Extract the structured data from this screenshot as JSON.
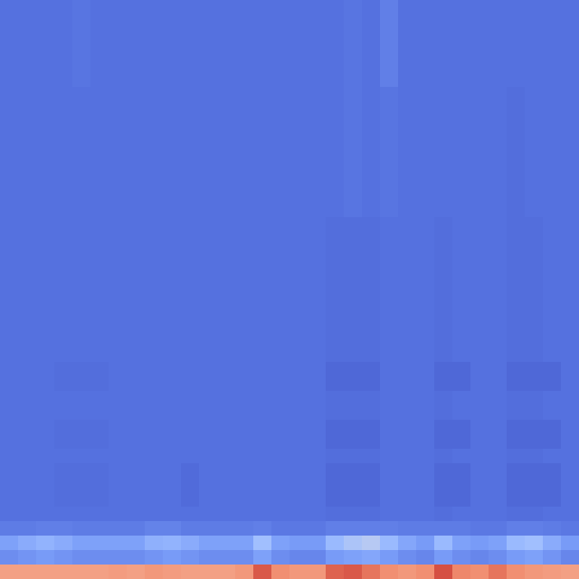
{
  "chart_data": {
    "type": "heatmap",
    "color": "coolwarm",
    "zlim": [
      0,
      1
    ],
    "tick_labels": false,
    "cells": [
      [
        0.12,
        0.12,
        0.12,
        0.12,
        0.13,
        0.12,
        0.12,
        0.12,
        0.12,
        0.12,
        0.12,
        0.12,
        0.12,
        0.12,
        0.12,
        0.12,
        0.12,
        0.12,
        0.12,
        0.13,
        0.12,
        0.16,
        0.12,
        0.12,
        0.12,
        0.12,
        0.12,
        0.12,
        0.12,
        0.12,
        0.12,
        0.12
      ],
      [
        0.12,
        0.12,
        0.12,
        0.12,
        0.13,
        0.12,
        0.12,
        0.12,
        0.12,
        0.12,
        0.12,
        0.12,
        0.12,
        0.12,
        0.12,
        0.12,
        0.12,
        0.12,
        0.12,
        0.13,
        0.12,
        0.16,
        0.12,
        0.12,
        0.12,
        0.12,
        0.12,
        0.12,
        0.12,
        0.12,
        0.12,
        0.12
      ],
      [
        0.12,
        0.12,
        0.12,
        0.12,
        0.13,
        0.12,
        0.12,
        0.12,
        0.12,
        0.12,
        0.12,
        0.12,
        0.12,
        0.12,
        0.12,
        0.12,
        0.12,
        0.12,
        0.12,
        0.13,
        0.12,
        0.16,
        0.12,
        0.12,
        0.12,
        0.12,
        0.12,
        0.12,
        0.12,
        0.12,
        0.12,
        0.12
      ],
      [
        0.12,
        0.12,
        0.12,
        0.12,
        0.13,
        0.12,
        0.12,
        0.12,
        0.12,
        0.12,
        0.12,
        0.12,
        0.12,
        0.12,
        0.12,
        0.12,
        0.12,
        0.12,
        0.12,
        0.13,
        0.12,
        0.16,
        0.12,
        0.12,
        0.12,
        0.12,
        0.12,
        0.12,
        0.12,
        0.12,
        0.12,
        0.12
      ],
      [
        0.12,
        0.12,
        0.12,
        0.12,
        0.13,
        0.12,
        0.12,
        0.12,
        0.12,
        0.12,
        0.12,
        0.12,
        0.12,
        0.12,
        0.12,
        0.12,
        0.12,
        0.12,
        0.12,
        0.13,
        0.12,
        0.16,
        0.12,
        0.12,
        0.12,
        0.12,
        0.12,
        0.12,
        0.12,
        0.12,
        0.12,
        0.12
      ],
      [
        0.12,
        0.12,
        0.12,
        0.12,
        0.13,
        0.12,
        0.12,
        0.12,
        0.12,
        0.12,
        0.12,
        0.12,
        0.12,
        0.12,
        0.12,
        0.12,
        0.12,
        0.12,
        0.12,
        0.13,
        0.12,
        0.16,
        0.12,
        0.12,
        0.12,
        0.12,
        0.12,
        0.12,
        0.12,
        0.12,
        0.12,
        0.12
      ],
      [
        0.12,
        0.12,
        0.12,
        0.12,
        0.12,
        0.12,
        0.12,
        0.12,
        0.12,
        0.12,
        0.12,
        0.12,
        0.12,
        0.12,
        0.12,
        0.12,
        0.12,
        0.12,
        0.12,
        0.13,
        0.12,
        0.13,
        0.12,
        0.12,
        0.12,
        0.12,
        0.12,
        0.12,
        0.11,
        0.12,
        0.12,
        0.12
      ],
      [
        0.12,
        0.12,
        0.12,
        0.12,
        0.12,
        0.12,
        0.12,
        0.12,
        0.12,
        0.12,
        0.12,
        0.12,
        0.12,
        0.12,
        0.12,
        0.12,
        0.12,
        0.12,
        0.12,
        0.13,
        0.12,
        0.13,
        0.12,
        0.12,
        0.12,
        0.12,
        0.12,
        0.12,
        0.11,
        0.12,
        0.12,
        0.12
      ],
      [
        0.12,
        0.12,
        0.12,
        0.12,
        0.12,
        0.12,
        0.12,
        0.12,
        0.12,
        0.12,
        0.12,
        0.12,
        0.12,
        0.12,
        0.12,
        0.12,
        0.12,
        0.12,
        0.12,
        0.13,
        0.12,
        0.13,
        0.12,
        0.12,
        0.12,
        0.12,
        0.12,
        0.12,
        0.11,
        0.12,
        0.12,
        0.12
      ],
      [
        0.12,
        0.12,
        0.12,
        0.12,
        0.12,
        0.12,
        0.12,
        0.12,
        0.12,
        0.12,
        0.12,
        0.12,
        0.12,
        0.12,
        0.12,
        0.12,
        0.12,
        0.12,
        0.12,
        0.13,
        0.12,
        0.13,
        0.12,
        0.12,
        0.12,
        0.12,
        0.12,
        0.12,
        0.11,
        0.12,
        0.12,
        0.12
      ],
      [
        0.12,
        0.12,
        0.12,
        0.12,
        0.12,
        0.12,
        0.12,
        0.12,
        0.12,
        0.12,
        0.12,
        0.12,
        0.12,
        0.12,
        0.12,
        0.12,
        0.12,
        0.12,
        0.12,
        0.13,
        0.12,
        0.13,
        0.12,
        0.12,
        0.12,
        0.12,
        0.12,
        0.12,
        0.11,
        0.12,
        0.12,
        0.12
      ],
      [
        0.12,
        0.12,
        0.12,
        0.12,
        0.12,
        0.12,
        0.12,
        0.12,
        0.12,
        0.12,
        0.12,
        0.12,
        0.12,
        0.12,
        0.12,
        0.12,
        0.12,
        0.12,
        0.12,
        0.13,
        0.12,
        0.13,
        0.12,
        0.12,
        0.12,
        0.12,
        0.12,
        0.12,
        0.11,
        0.12,
        0.12,
        0.12
      ],
      [
        0.12,
        0.12,
        0.12,
        0.12,
        0.12,
        0.12,
        0.12,
        0.12,
        0.12,
        0.12,
        0.12,
        0.12,
        0.12,
        0.12,
        0.12,
        0.12,
        0.12,
        0.12,
        0.12,
        0.13,
        0.12,
        0.13,
        0.12,
        0.12,
        0.12,
        0.12,
        0.12,
        0.12,
        0.11,
        0.12,
        0.12,
        0.12
      ],
      [
        0.12,
        0.12,
        0.12,
        0.12,
        0.12,
        0.12,
        0.12,
        0.12,
        0.12,
        0.12,
        0.12,
        0.12,
        0.12,
        0.12,
        0.12,
        0.12,
        0.12,
        0.12,
        0.12,
        0.13,
        0.12,
        0.13,
        0.12,
        0.12,
        0.12,
        0.12,
        0.12,
        0.12,
        0.11,
        0.12,
        0.12,
        0.12
      ],
      [
        0.12,
        0.12,
        0.12,
        0.12,
        0.12,
        0.12,
        0.12,
        0.12,
        0.12,
        0.12,
        0.12,
        0.12,
        0.12,
        0.12,
        0.12,
        0.12,
        0.12,
        0.12,
        0.12,
        0.13,
        0.12,
        0.13,
        0.12,
        0.12,
        0.12,
        0.12,
        0.12,
        0.12,
        0.11,
        0.12,
        0.12,
        0.12
      ],
      [
        0.12,
        0.12,
        0.12,
        0.12,
        0.12,
        0.12,
        0.12,
        0.12,
        0.12,
        0.12,
        0.12,
        0.12,
        0.12,
        0.12,
        0.12,
        0.12,
        0.12,
        0.12,
        0.11,
        0.11,
        0.11,
        0.12,
        0.12,
        0.12,
        0.11,
        0.12,
        0.12,
        0.12,
        0.11,
        0.11,
        0.12,
        0.12
      ],
      [
        0.12,
        0.12,
        0.12,
        0.12,
        0.12,
        0.12,
        0.12,
        0.12,
        0.12,
        0.12,
        0.12,
        0.12,
        0.12,
        0.12,
        0.12,
        0.12,
        0.12,
        0.12,
        0.11,
        0.11,
        0.11,
        0.12,
        0.12,
        0.12,
        0.11,
        0.12,
        0.12,
        0.12,
        0.11,
        0.11,
        0.12,
        0.12
      ],
      [
        0.12,
        0.12,
        0.12,
        0.12,
        0.12,
        0.12,
        0.12,
        0.12,
        0.12,
        0.12,
        0.12,
        0.12,
        0.12,
        0.12,
        0.12,
        0.12,
        0.12,
        0.12,
        0.11,
        0.11,
        0.11,
        0.12,
        0.12,
        0.12,
        0.11,
        0.12,
        0.12,
        0.12,
        0.11,
        0.11,
        0.12,
        0.12
      ],
      [
        0.12,
        0.12,
        0.12,
        0.12,
        0.12,
        0.12,
        0.12,
        0.12,
        0.12,
        0.12,
        0.12,
        0.12,
        0.12,
        0.12,
        0.12,
        0.12,
        0.12,
        0.12,
        0.11,
        0.11,
        0.11,
        0.12,
        0.12,
        0.12,
        0.11,
        0.12,
        0.12,
        0.12,
        0.11,
        0.11,
        0.12,
        0.12
      ],
      [
        0.12,
        0.12,
        0.12,
        0.12,
        0.12,
        0.12,
        0.12,
        0.12,
        0.12,
        0.12,
        0.12,
        0.12,
        0.12,
        0.12,
        0.12,
        0.12,
        0.12,
        0.12,
        0.11,
        0.11,
        0.11,
        0.12,
        0.12,
        0.12,
        0.11,
        0.12,
        0.12,
        0.12,
        0.11,
        0.11,
        0.12,
        0.12
      ],
      [
        0.12,
        0.12,
        0.12,
        0.12,
        0.12,
        0.12,
        0.12,
        0.12,
        0.12,
        0.12,
        0.12,
        0.12,
        0.12,
        0.12,
        0.12,
        0.12,
        0.12,
        0.12,
        0.11,
        0.11,
        0.11,
        0.12,
        0.12,
        0.12,
        0.11,
        0.12,
        0.12,
        0.12,
        0.11,
        0.11,
        0.12,
        0.12
      ],
      [
        0.12,
        0.12,
        0.12,
        0.12,
        0.12,
        0.12,
        0.12,
        0.12,
        0.12,
        0.12,
        0.12,
        0.12,
        0.12,
        0.12,
        0.12,
        0.12,
        0.12,
        0.12,
        0.11,
        0.11,
        0.11,
        0.12,
        0.12,
        0.12,
        0.11,
        0.12,
        0.12,
        0.12,
        0.11,
        0.11,
        0.12,
        0.12
      ],
      [
        0.12,
        0.12,
        0.12,
        0.12,
        0.12,
        0.12,
        0.12,
        0.12,
        0.12,
        0.12,
        0.12,
        0.12,
        0.12,
        0.12,
        0.12,
        0.12,
        0.12,
        0.12,
        0.11,
        0.11,
        0.11,
        0.12,
        0.12,
        0.12,
        0.11,
        0.12,
        0.12,
        0.12,
        0.11,
        0.11,
        0.12,
        0.12
      ],
      [
        0.12,
        0.12,
        0.12,
        0.12,
        0.12,
        0.12,
        0.12,
        0.12,
        0.12,
        0.12,
        0.12,
        0.12,
        0.12,
        0.12,
        0.12,
        0.12,
        0.12,
        0.12,
        0.11,
        0.11,
        0.11,
        0.12,
        0.12,
        0.12,
        0.11,
        0.12,
        0.12,
        0.12,
        0.11,
        0.11,
        0.12,
        0.12
      ],
      [
        0.12,
        0.12,
        0.12,
        0.12,
        0.12,
        0.12,
        0.12,
        0.12,
        0.12,
        0.12,
        0.12,
        0.12,
        0.12,
        0.12,
        0.12,
        0.12,
        0.12,
        0.12,
        0.11,
        0.11,
        0.11,
        0.12,
        0.12,
        0.12,
        0.11,
        0.12,
        0.12,
        0.12,
        0.11,
        0.11,
        0.12,
        0.12
      ],
      [
        0.12,
        0.12,
        0.12,
        0.11,
        0.11,
        0.11,
        0.12,
        0.12,
        0.12,
        0.12,
        0.12,
        0.12,
        0.12,
        0.12,
        0.12,
        0.12,
        0.12,
        0.12,
        0.09,
        0.09,
        0.09,
        0.12,
        0.12,
        0.12,
        0.09,
        0.09,
        0.12,
        0.12,
        0.09,
        0.09,
        0.09,
        0.12
      ],
      [
        0.12,
        0.12,
        0.12,
        0.11,
        0.11,
        0.11,
        0.12,
        0.12,
        0.12,
        0.12,
        0.12,
        0.12,
        0.12,
        0.12,
        0.12,
        0.12,
        0.12,
        0.12,
        0.09,
        0.09,
        0.09,
        0.12,
        0.12,
        0.12,
        0.09,
        0.09,
        0.12,
        0.12,
        0.09,
        0.09,
        0.09,
        0.12
      ],
      [
        0.12,
        0.12,
        0.12,
        0.12,
        0.12,
        0.12,
        0.12,
        0.12,
        0.12,
        0.12,
        0.12,
        0.12,
        0.12,
        0.12,
        0.12,
        0.12,
        0.12,
        0.12,
        0.11,
        0.11,
        0.11,
        0.12,
        0.12,
        0.12,
        0.11,
        0.12,
        0.12,
        0.12,
        0.11,
        0.11,
        0.12,
        0.12
      ],
      [
        0.12,
        0.12,
        0.12,
        0.12,
        0.12,
        0.12,
        0.12,
        0.12,
        0.12,
        0.12,
        0.12,
        0.12,
        0.12,
        0.12,
        0.12,
        0.12,
        0.12,
        0.12,
        0.11,
        0.11,
        0.11,
        0.12,
        0.12,
        0.12,
        0.11,
        0.12,
        0.12,
        0.12,
        0.11,
        0.11,
        0.12,
        0.12
      ],
      [
        0.12,
        0.12,
        0.12,
        0.11,
        0.11,
        0.11,
        0.12,
        0.12,
        0.12,
        0.12,
        0.12,
        0.12,
        0.12,
        0.12,
        0.12,
        0.12,
        0.12,
        0.12,
        0.09,
        0.09,
        0.09,
        0.12,
        0.12,
        0.12,
        0.09,
        0.09,
        0.12,
        0.12,
        0.09,
        0.09,
        0.09,
        0.12
      ],
      [
        0.12,
        0.12,
        0.12,
        0.11,
        0.11,
        0.11,
        0.12,
        0.12,
        0.12,
        0.12,
        0.12,
        0.12,
        0.12,
        0.12,
        0.12,
        0.12,
        0.12,
        0.12,
        0.09,
        0.09,
        0.09,
        0.12,
        0.12,
        0.12,
        0.09,
        0.09,
        0.12,
        0.12,
        0.09,
        0.09,
        0.09,
        0.12
      ],
      [
        0.12,
        0.12,
        0.12,
        0.12,
        0.12,
        0.12,
        0.12,
        0.12,
        0.12,
        0.12,
        0.12,
        0.12,
        0.12,
        0.12,
        0.12,
        0.12,
        0.12,
        0.12,
        0.11,
        0.11,
        0.11,
        0.12,
        0.12,
        0.12,
        0.11,
        0.12,
        0.12,
        0.12,
        0.11,
        0.11,
        0.12,
        0.12
      ],
      [
        0.12,
        0.12,
        0.12,
        0.11,
        0.11,
        0.11,
        0.12,
        0.12,
        0.12,
        0.12,
        0.1,
        0.12,
        0.12,
        0.12,
        0.12,
        0.12,
        0.12,
        0.12,
        0.09,
        0.09,
        0.09,
        0.12,
        0.12,
        0.12,
        0.09,
        0.09,
        0.12,
        0.12,
        0.09,
        0.09,
        0.09,
        0.12
      ],
      [
        0.12,
        0.12,
        0.12,
        0.11,
        0.11,
        0.11,
        0.12,
        0.12,
        0.12,
        0.12,
        0.1,
        0.12,
        0.12,
        0.12,
        0.12,
        0.12,
        0.12,
        0.12,
        0.09,
        0.09,
        0.09,
        0.12,
        0.12,
        0.12,
        0.09,
        0.09,
        0.12,
        0.12,
        0.09,
        0.09,
        0.09,
        0.12
      ],
      [
        0.12,
        0.12,
        0.12,
        0.11,
        0.11,
        0.11,
        0.12,
        0.12,
        0.12,
        0.12,
        0.1,
        0.12,
        0.12,
        0.12,
        0.12,
        0.12,
        0.12,
        0.12,
        0.09,
        0.09,
        0.09,
        0.12,
        0.12,
        0.12,
        0.09,
        0.09,
        0.12,
        0.12,
        0.09,
        0.09,
        0.09,
        0.12
      ],
      [
        0.12,
        0.12,
        0.12,
        0.12,
        0.12,
        0.12,
        0.12,
        0.12,
        0.12,
        0.12,
        0.12,
        0.12,
        0.12,
        0.12,
        0.12,
        0.12,
        0.12,
        0.12,
        0.11,
        0.11,
        0.11,
        0.12,
        0.12,
        0.12,
        0.11,
        0.12,
        0.12,
        0.12,
        0.11,
        0.11,
        0.12,
        0.12
      ],
      [
        0.15,
        0.15,
        0.16,
        0.16,
        0.15,
        0.15,
        0.15,
        0.15,
        0.17,
        0.17,
        0.15,
        0.15,
        0.15,
        0.15,
        0.16,
        0.14,
        0.14,
        0.14,
        0.16,
        0.16,
        0.16,
        0.16,
        0.15,
        0.15,
        0.15,
        0.15,
        0.14,
        0.14,
        0.16,
        0.16,
        0.15,
        0.14
      ],
      [
        0.26,
        0.3,
        0.33,
        0.3,
        0.26,
        0.26,
        0.26,
        0.26,
        0.32,
        0.33,
        0.3,
        0.26,
        0.26,
        0.26,
        0.38,
        0.26,
        0.24,
        0.24,
        0.36,
        0.4,
        0.42,
        0.36,
        0.28,
        0.24,
        0.36,
        0.26,
        0.24,
        0.26,
        0.36,
        0.38,
        0.3,
        0.24
      ],
      [
        0.2,
        0.22,
        0.24,
        0.22,
        0.2,
        0.2,
        0.2,
        0.2,
        0.22,
        0.24,
        0.22,
        0.2,
        0.2,
        0.2,
        0.26,
        0.2,
        0.18,
        0.18,
        0.24,
        0.26,
        0.28,
        0.24,
        0.2,
        0.18,
        0.24,
        0.2,
        0.18,
        0.2,
        0.24,
        0.26,
        0.22,
        0.18
      ],
      [
        0.7,
        0.7,
        0.7,
        0.7,
        0.7,
        0.7,
        0.71,
        0.7,
        0.72,
        0.71,
        0.7,
        0.7,
        0.7,
        0.72,
        0.86,
        0.74,
        0.72,
        0.72,
        0.84,
        0.86,
        0.8,
        0.74,
        0.72,
        0.74,
        0.88,
        0.76,
        0.74,
        0.8,
        0.74,
        0.72,
        0.71,
        0.7
      ]
    ]
  }
}
